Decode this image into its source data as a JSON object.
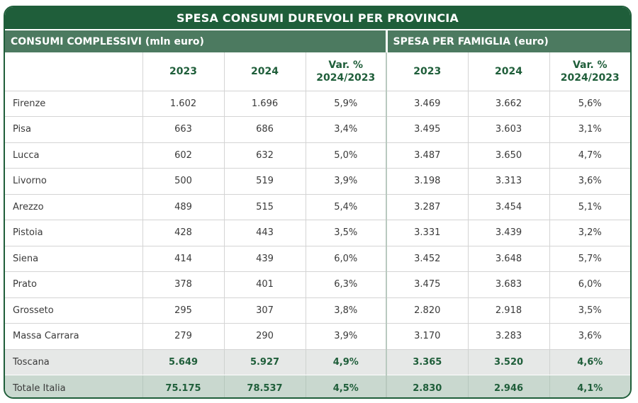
{
  "title": "SPESA CONSUMI DUREVOLI PER PROVINCIA",
  "sections": {
    "left": "CONSUMI COMPLESSIVI (mln euro)",
    "right": "SPESA PER FAMIGLIA (euro)"
  },
  "columns": {
    "y2023": "2023",
    "y2024": "2024",
    "var_line1": "Var. %",
    "var_line2": "2024/2023"
  },
  "chart_data": {
    "type": "table",
    "title": "SPESA CONSUMI DUREVOLI PER PROVINCIA",
    "column_groups": [
      "CONSUMI COMPLESSIVI (mln euro)",
      "SPESA PER FAMIGLIA (euro)"
    ],
    "columns": [
      "2023",
      "2024",
      "Var. % 2024/2023",
      "2023",
      "2024",
      "Var. % 2024/2023"
    ],
    "rows": [
      {
        "name": "Firenze",
        "values": [
          "1.602",
          "1.696",
          "5,9%",
          "3.469",
          "3.662",
          "5,6%"
        ]
      },
      {
        "name": "Pisa",
        "values": [
          "663",
          "686",
          "3,4%",
          "3.495",
          "3.603",
          "3,1%"
        ]
      },
      {
        "name": "Lucca",
        "values": [
          "602",
          "632",
          "5,0%",
          "3.487",
          "3.650",
          "4,7%"
        ]
      },
      {
        "name": "Livorno",
        "values": [
          "500",
          "519",
          "3,9%",
          "3.198",
          "3.313",
          "3,6%"
        ]
      },
      {
        "name": "Arezzo",
        "values": [
          "489",
          "515",
          "5,4%",
          "3.287",
          "3.454",
          "5,1%"
        ]
      },
      {
        "name": "Pistoia",
        "values": [
          "428",
          "443",
          "3,5%",
          "3.331",
          "3.439",
          "3,2%"
        ]
      },
      {
        "name": "Siena",
        "values": [
          "414",
          "439",
          "6,0%",
          "3.452",
          "3.648",
          "5,7%"
        ]
      },
      {
        "name": "Prato",
        "values": [
          "378",
          "401",
          "6,3%",
          "3.475",
          "3.683",
          "6,0%"
        ]
      },
      {
        "name": "Grosseto",
        "values": [
          "295",
          "307",
          "3,8%",
          "2.820",
          "2.918",
          "3,5%"
        ]
      },
      {
        "name": "Massa Carrara",
        "values": [
          "279",
          "290",
          "3,9%",
          "3.170",
          "3.283",
          "3,6%"
        ]
      }
    ],
    "totals": [
      {
        "name": "Toscana",
        "values": [
          "5.649",
          "5.927",
          "4,9%",
          "3.365",
          "3.520",
          "4,6%"
        ]
      },
      {
        "name": "Totale Italia",
        "values": [
          "75.175",
          "78.537",
          "4,5%",
          "2.830",
          "2.946",
          "4,1%"
        ]
      }
    ]
  },
  "colors": {
    "brand_green": "#1f5e3a",
    "section_green": "#4c7a60",
    "toscana_bg": "#e6e8e7",
    "italia_bg": "#c9d8cf"
  }
}
